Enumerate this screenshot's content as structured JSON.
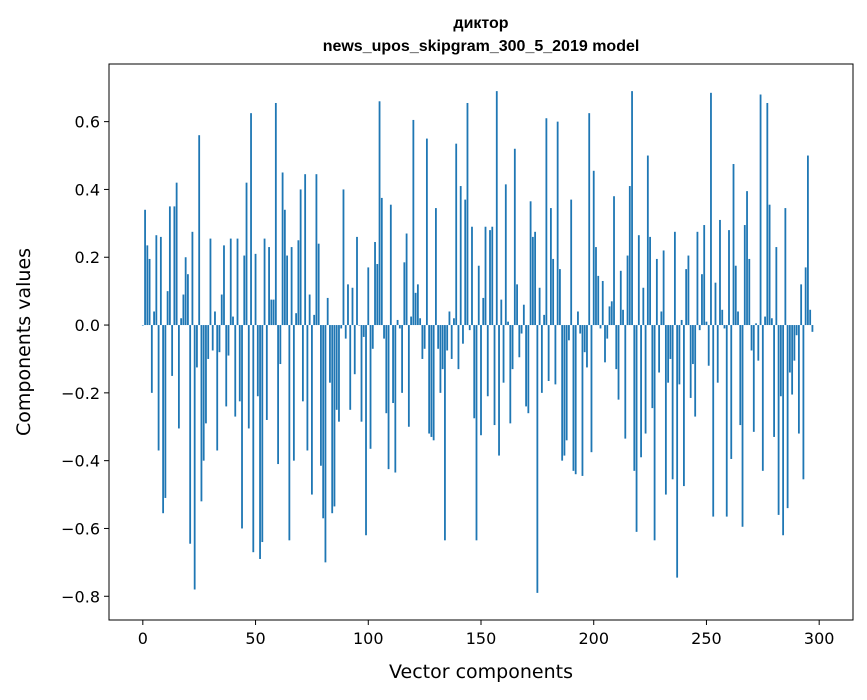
{
  "chart_data": {
    "type": "bar",
    "title_line1": "диктор",
    "title_line2": "news_upos_skipgram_300_5_2019 model",
    "xlabel": "Vector components",
    "ylabel": "Components values",
    "xlim": [
      -15,
      315
    ],
    "ylim": [
      -0.87,
      0.77
    ],
    "xticks": [
      0,
      50,
      100,
      150,
      200,
      250,
      300
    ],
    "xtick_labels": [
      "0",
      "50",
      "100",
      "150",
      "200",
      "250",
      "300"
    ],
    "yticks": [
      -0.8,
      -0.6,
      -0.4,
      -0.2,
      0.0,
      0.2,
      0.4,
      0.6
    ],
    "ytick_labels": [
      "−0.8",
      "−0.6",
      "−0.4",
      "−0.2",
      "0.0",
      "0.2",
      "0.4",
      "0.6"
    ],
    "grid": false,
    "color": "#1f77b4",
    "values": [
      0.0,
      0.34,
      0.235,
      0.195,
      -0.2,
      0.04,
      0.265,
      -0.37,
      0.26,
      -0.555,
      -0.51,
      0.1,
      0.35,
      -0.15,
      0.35,
      0.42,
      -0.305,
      0.02,
      0.09,
      0.2,
      0.15,
      -0.645,
      0.275,
      -0.78,
      -0.125,
      0.56,
      -0.52,
      -0.4,
      -0.29,
      -0.1,
      0.255,
      -0.075,
      0.04,
      -0.37,
      -0.08,
      0.09,
      0.235,
      -0.24,
      -0.09,
      0.255,
      0.025,
      -0.27,
      0.255,
      -0.225,
      -0.6,
      0.205,
      0.42,
      -0.305,
      0.625,
      -0.67,
      0.21,
      -0.21,
      -0.69,
      -0.64,
      0.255,
      -0.28,
      0.23,
      0.075,
      0.075,
      0.655,
      -0.41,
      -0.115,
      0.45,
      0.34,
      0.205,
      -0.635,
      0.23,
      -0.4,
      0.035,
      0.25,
      0.4,
      -0.225,
      0.445,
      -0.37,
      0.09,
      -0.5,
      0.03,
      0.445,
      0.24,
      -0.415,
      -0.57,
      -0.7,
      0.08,
      -0.17,
      -0.555,
      -0.535,
      -0.25,
      -0.285,
      -0.01,
      0.4,
      -0.04,
      0.12,
      -0.25,
      0.11,
      -0.145,
      0.26,
      0.0,
      -0.285,
      -0.035,
      -0.62,
      0.17,
      -0.365,
      -0.07,
      0.245,
      0.18,
      0.66,
      0.375,
      -0.04,
      -0.26,
      -0.425,
      0.355,
      -0.23,
      -0.435,
      0.015,
      -0.01,
      -0.2,
      0.185,
      0.27,
      -0.3,
      0.025,
      0.605,
      0.095,
      0.12,
      0.02,
      -0.1,
      -0.07,
      0.55,
      -0.32,
      -0.33,
      -0.34,
      0.345,
      -0.07,
      -0.2,
      -0.13,
      -0.635,
      -0.075,
      0.04,
      -0.1,
      0.02,
      0.535,
      -0.13,
      0.41,
      -0.055,
      0.37,
      0.655,
      -0.015,
      0.29,
      -0.275,
      -0.635,
      0.175,
      -0.325,
      0.08,
      0.29,
      -0.21,
      0.28,
      0.29,
      -0.295,
      0.69,
      -0.385,
      0.075,
      -0.17,
      0.415,
      0.01,
      -0.29,
      -0.13,
      0.52,
      0.12,
      -0.095,
      -0.025,
      0.06,
      -0.24,
      -0.26,
      0.365,
      0.26,
      0.275,
      -0.79,
      0.11,
      -0.2,
      0.03,
      0.61,
      -0.165,
      0.345,
      0.195,
      -0.175,
      0.6,
      0.165,
      -0.4,
      -0.385,
      -0.34,
      -0.045,
      0.37,
      -0.43,
      -0.44,
      0.04,
      -0.025,
      -0.445,
      -0.08,
      -0.125,
      0.625,
      -0.375,
      0.455,
      0.23,
      0.145,
      -0.01,
      0.13,
      -0.11,
      -0.04,
      0.055,
      0.07,
      0.38,
      -0.13,
      -0.22,
      0.16,
      0.045,
      -0.335,
      0.205,
      0.41,
      0.69,
      -0.43,
      -0.61,
      0.265,
      -0.39,
      0.11,
      -0.32,
      0.5,
      0.26,
      -0.245,
      -0.635,
      0.195,
      -0.14,
      0.04,
      0.22,
      -0.5,
      -0.17,
      -0.1,
      -0.455,
      0.275,
      -0.745,
      -0.175,
      0.015,
      -0.475,
      0.165,
      0.205,
      -0.215,
      -0.115,
      -0.27,
      0.275,
      -0.015,
      0.15,
      0.295,
      0.01,
      -0.12,
      0.685,
      -0.565,
      0.125,
      -0.17,
      0.31,
      0.045,
      -0.01,
      -0.565,
      0.28,
      -0.395,
      0.475,
      0.175,
      0.04,
      -0.295,
      -0.595,
      0.295,
      0.395,
      0.195,
      -0.075,
      -0.315,
      0.005,
      -0.105,
      0.68,
      -0.43,
      0.025,
      0.655,
      0.355,
      0.02,
      -0.33,
      0.23,
      -0.56,
      -0.21,
      -0.62,
      0.345,
      -0.54,
      -0.14,
      -0.205,
      -0.105,
      -0.03,
      -0.32,
      0.12,
      -0.455,
      0.17,
      0.5,
      0.045,
      -0.02
    ]
  }
}
